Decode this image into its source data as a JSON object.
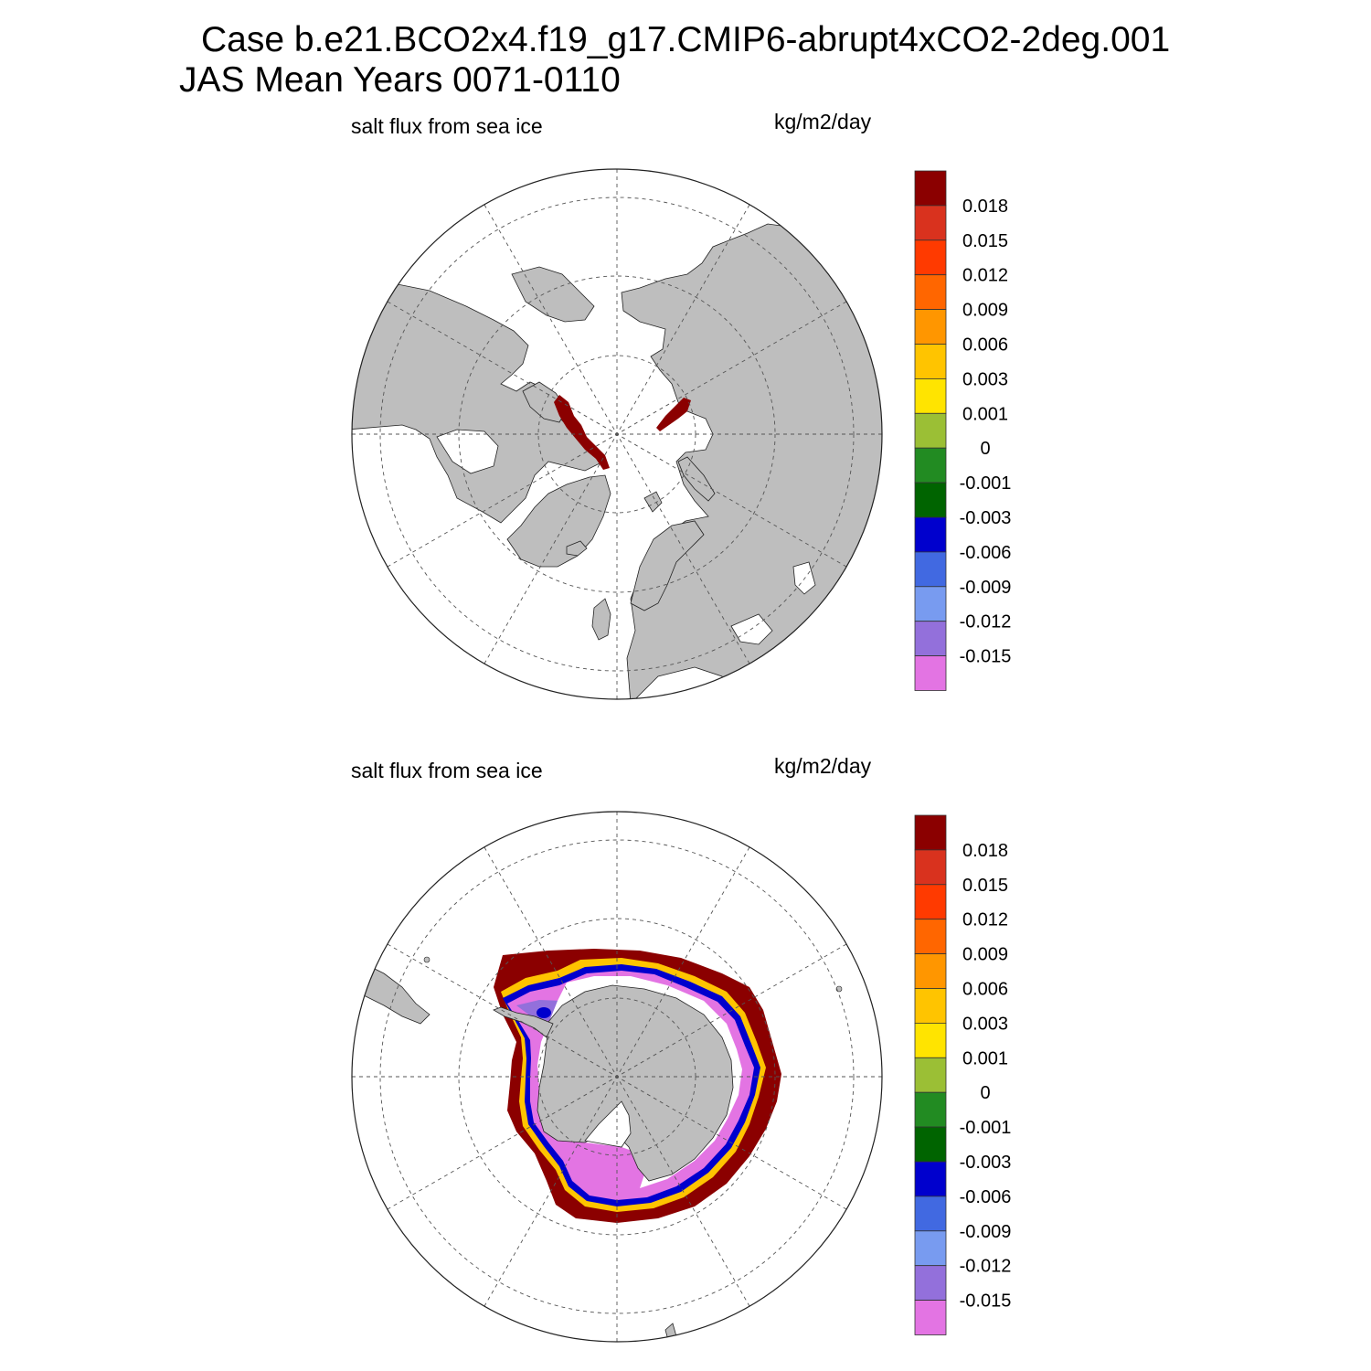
{
  "figure": {
    "title_line1": "Case b.e21.BCO2x4.f19_g17.CMIP6-abrupt4xCO2-2deg.001",
    "title_line2": "JAS Mean   Years 0071-0110"
  },
  "panels": [
    {
      "id": "north",
      "hemisphere": "Northern Hemisphere polar stereographic",
      "variable_label": "salt flux from sea ice",
      "units_label": "kg/m2/day",
      "land_color": "#bebebe",
      "features": [
        {
          "region": "Canadian Arctic Archipelago coast",
          "category": "> 0.018"
        },
        {
          "region": "Siberian coast (Laptev / East Siberian Sea)",
          "category": "> 0.018"
        }
      ]
    },
    {
      "id": "south",
      "hemisphere": "Southern Hemisphere polar stereographic",
      "variable_label": "salt flux from sea ice",
      "units_label": "kg/m2/day",
      "land_color": "#bebebe",
      "features": [
        {
          "region": "outer sea-ice edge ring",
          "category": "> 0.018"
        },
        {
          "region": "Weddell Sea interior",
          "category": "< -0.015"
        },
        {
          "region": "Ross Sea interior",
          "category": "< -0.015"
        },
        {
          "region": "transition band at ice edge",
          "category": "-0.006 to 0.003"
        }
      ]
    }
  ],
  "colorbar": {
    "levels": [
      "0.018",
      "0.015",
      "0.012",
      "0.009",
      "0.006",
      "0.003",
      "0.001",
      "0",
      "-0.001",
      "-0.003",
      "-0.006",
      "-0.009",
      "-0.012",
      "-0.015"
    ],
    "colors": [
      "#8b0000",
      "#d9321e",
      "#ff3a00",
      "#ff6600",
      "#ff9600",
      "#ffc400",
      "#ffe400",
      "#9bbf35",
      "#228b22",
      "#006400",
      "#0000cd",
      "#4169e1",
      "#789bf0",
      "#9370db",
      "#e374e3"
    ]
  }
}
